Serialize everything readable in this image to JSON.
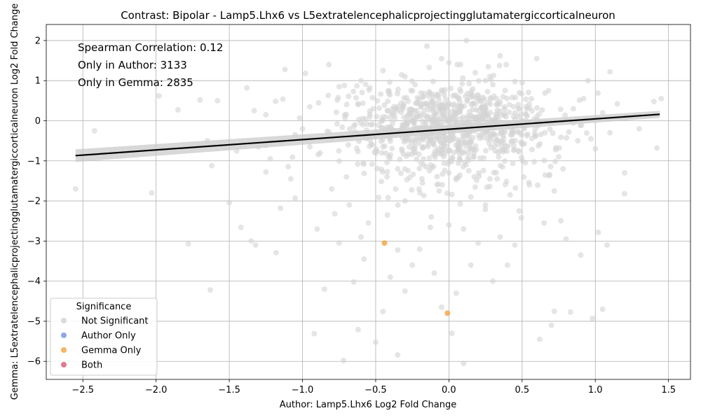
{
  "chart_data": {
    "type": "scatter",
    "title": "Contrast: Bipolar - Lamp5.Lhx6 vs L5extratelencephalicprojectingglutamatergiccorticalneuron",
    "xlabel": "Author: Lamp5.Lhx6 Log2 Fold Change",
    "ylabel": "Gemma: L5extratelencephalicprojectingglutamatergiccorticalneuron Log2 Fold Change",
    "xlim": [
      -2.75,
      1.65
    ],
    "ylim": [
      -6.45,
      2.4
    ],
    "xticks": [
      -2.5,
      -2.0,
      -1.5,
      -1.0,
      -0.5,
      0.0,
      0.5,
      1.0,
      1.5
    ],
    "xtick_labels": [
      "−2.5",
      "−2.0",
      "−1.5",
      "−1.0",
      "−0.5",
      "0.0",
      "0.5",
      "1.0",
      "1.5"
    ],
    "yticks": [
      -6,
      -5,
      -4,
      -3,
      -2,
      -1,
      0,
      1,
      2
    ],
    "ytick_labels": [
      "−6",
      "−5",
      "−4",
      "−3",
      "−2",
      "−1",
      "0",
      "1",
      "2"
    ],
    "grid": true,
    "annotations": [
      "Spearman Correlation: 0.12",
      "Only in Author: 3133",
      "Only in Gemma: 2835"
    ],
    "legend": {
      "title": "Significance",
      "placement": "lower-left",
      "entries": [
        {
          "label": "Not Significant",
          "color": "#d3d3d3"
        },
        {
          "label": "Author Only",
          "color": "#7b96e6"
        },
        {
          "label": "Gemma Only",
          "color": "#f5a64a"
        },
        {
          "label": "Both",
          "color": "#e0607a"
        }
      ]
    },
    "regression_line": {
      "x": [
        -2.55,
        1.44
      ],
      "y": [
        -0.87,
        0.16
      ],
      "color": "#000000"
    },
    "series": [
      {
        "name": "Not Significant",
        "color": "#d3d3d3",
        "points": [
          [
            -2.55,
            -1.7
          ],
          [
            -2.42,
            -0.25
          ],
          [
            -2.03,
            -1.8
          ],
          [
            -1.98,
            0.62
          ],
          [
            -1.85,
            0.27
          ],
          [
            -1.78,
            -3.07
          ],
          [
            -1.65,
            -0.5
          ],
          [
            -1.63,
            -4.22
          ],
          [
            -1.62,
            -1.12
          ],
          [
            -1.5,
            -2.04
          ],
          [
            -1.42,
            -2.66
          ],
          [
            -1.38,
            0.82
          ],
          [
            -1.35,
            -3.0
          ],
          [
            -1.32,
            -3.1
          ],
          [
            -1.3,
            -0.65
          ],
          [
            -1.25,
            -1.28
          ],
          [
            -1.18,
            -3.29
          ],
          [
            -1.15,
            -2.18
          ],
          [
            -1.12,
            1.28
          ],
          [
            -1.05,
            -1.93
          ],
          [
            -0.98,
            1.18
          ],
          [
            -0.95,
            -0.65
          ],
          [
            -0.92,
            -5.31
          ],
          [
            -0.85,
            -4.2
          ],
          [
            -0.82,
            1.4
          ],
          [
            -0.78,
            -2.32
          ],
          [
            -0.72,
            -5.98
          ],
          [
            -0.65,
            -4.02
          ],
          [
            -0.62,
            -5.21
          ],
          [
            -0.58,
            -3.45
          ],
          [
            -0.5,
            -5.52
          ],
          [
            -0.45,
            -4.76
          ],
          [
            -0.35,
            -5.84
          ],
          [
            -0.3,
            -4.25
          ],
          [
            -0.15,
            1.86
          ],
          [
            -0.05,
            1.55
          ],
          [
            0.02,
            -5.3
          ],
          [
            0.1,
            -6.05
          ],
          [
            0.12,
            2.0
          ],
          [
            0.25,
            1.0
          ],
          [
            0.35,
            1.62
          ],
          [
            0.6,
            1.55
          ],
          [
            0.62,
            -5.45
          ],
          [
            0.7,
            -5.1
          ],
          [
            0.72,
            -4.75
          ],
          [
            0.8,
            -2.95
          ],
          [
            0.83,
            -4.77
          ],
          [
            0.9,
            -3.35
          ],
          [
            0.95,
            1.0
          ],
          [
            0.98,
            -4.93
          ],
          [
            1.02,
            -2.78
          ],
          [
            1.05,
            -4.7
          ],
          [
            1.08,
            -3.1
          ],
          [
            1.1,
            1.22
          ],
          [
            1.15,
            0.42
          ],
          [
            1.2,
            -1.3
          ],
          [
            1.2,
            -1.82
          ],
          [
            1.3,
            -0.2
          ],
          [
            1.4,
            0.48
          ],
          [
            1.42,
            -0.68
          ],
          [
            1.45,
            0.55
          ],
          [
            1.0,
            -0.7
          ],
          [
            0.85,
            0.3
          ],
          [
            -1.7,
            0.52
          ],
          [
            -1.58,
            0.5
          ],
          [
            -1.45,
            -0.75
          ],
          [
            -1.33,
            0.25
          ],
          [
            -1.22,
            -0.95
          ],
          [
            -1.08,
            -1.45
          ],
          [
            -0.75,
            0.85
          ],
          [
            -0.7,
            -1.4
          ],
          [
            -0.68,
            -2.1
          ],
          [
            0.48,
            -2.25
          ],
          [
            0.5,
            0.95
          ],
          [
            0.45,
            -3.1
          ],
          [
            0.4,
            -3.6
          ],
          [
            0.3,
            -4.0
          ],
          [
            0.2,
            -3.05
          ],
          [
            0.15,
            -3.6
          ],
          [
            0.05,
            -4.3
          ],
          [
            -0.05,
            -4.65
          ],
          [
            -0.1,
            -3.8
          ],
          [
            -0.2,
            -3.2
          ],
          [
            -0.25,
            -3.6
          ],
          [
            -0.4,
            -3.9
          ],
          [
            -0.42,
            -2.35
          ],
          [
            -0.55,
            -2.55
          ],
          [
            -0.6,
            -2.9
          ],
          [
            0.65,
            -2.55
          ],
          [
            0.72,
            -1.75
          ],
          [
            0.78,
            -1.2
          ],
          [
            0.88,
            -0.5
          ],
          [
            0.92,
            0.55
          ],
          [
            1.1,
            -0.3
          ],
          [
            1.05,
            0.2
          ],
          [
            -0.95,
            0.35
          ],
          [
            -1.0,
            -0.2
          ],
          [
            -0.88,
            -0.8
          ],
          [
            -0.8,
            -1.7
          ],
          [
            -0.9,
            -2.7
          ],
          [
            -0.75,
            -3.05
          ],
          [
            0.35,
            -2.9
          ],
          [
            0.55,
            -1.6
          ],
          [
            0.6,
            0.1
          ],
          [
            -1.25,
            0.15
          ],
          [
            -1.15,
            -0.55
          ],
          [
            -1.05,
            -0.35
          ],
          [
            0.97,
            -0.45
          ],
          [
            0.75,
            -0.9
          ],
          [
            0.68,
            0.75
          ],
          [
            -0.3,
            1.1
          ],
          [
            -0.45,
            1.25
          ],
          [
            0.0,
            1.45
          ],
          [
            0.18,
            1.2
          ],
          [
            -0.6,
            1.0
          ],
          [
            0.3,
            0.9
          ],
          [
            0.0,
            -2.6
          ],
          [
            -0.12,
            -2.4
          ],
          [
            0.1,
            -2.7
          ],
          [
            0.25,
            -2.1
          ],
          [
            -0.3,
            -2.0
          ],
          [
            -0.18,
            -1.55
          ],
          [
            0.15,
            -1.9
          ],
          [
            0.0,
            -1.3
          ],
          [
            -0.35,
            -1.2
          ],
          [
            0.28,
            -1.45
          ]
        ],
        "cluster": {
          "center": [
            0.0,
            -0.15
          ],
          "spread": [
            0.34,
            0.55
          ],
          "count": 900
        }
      },
      {
        "name": "Gemma Only",
        "color": "#f5a64a",
        "points": [
          [
            -0.44,
            -3.05
          ],
          [
            -0.01,
            -4.8
          ]
        ]
      }
    ]
  }
}
